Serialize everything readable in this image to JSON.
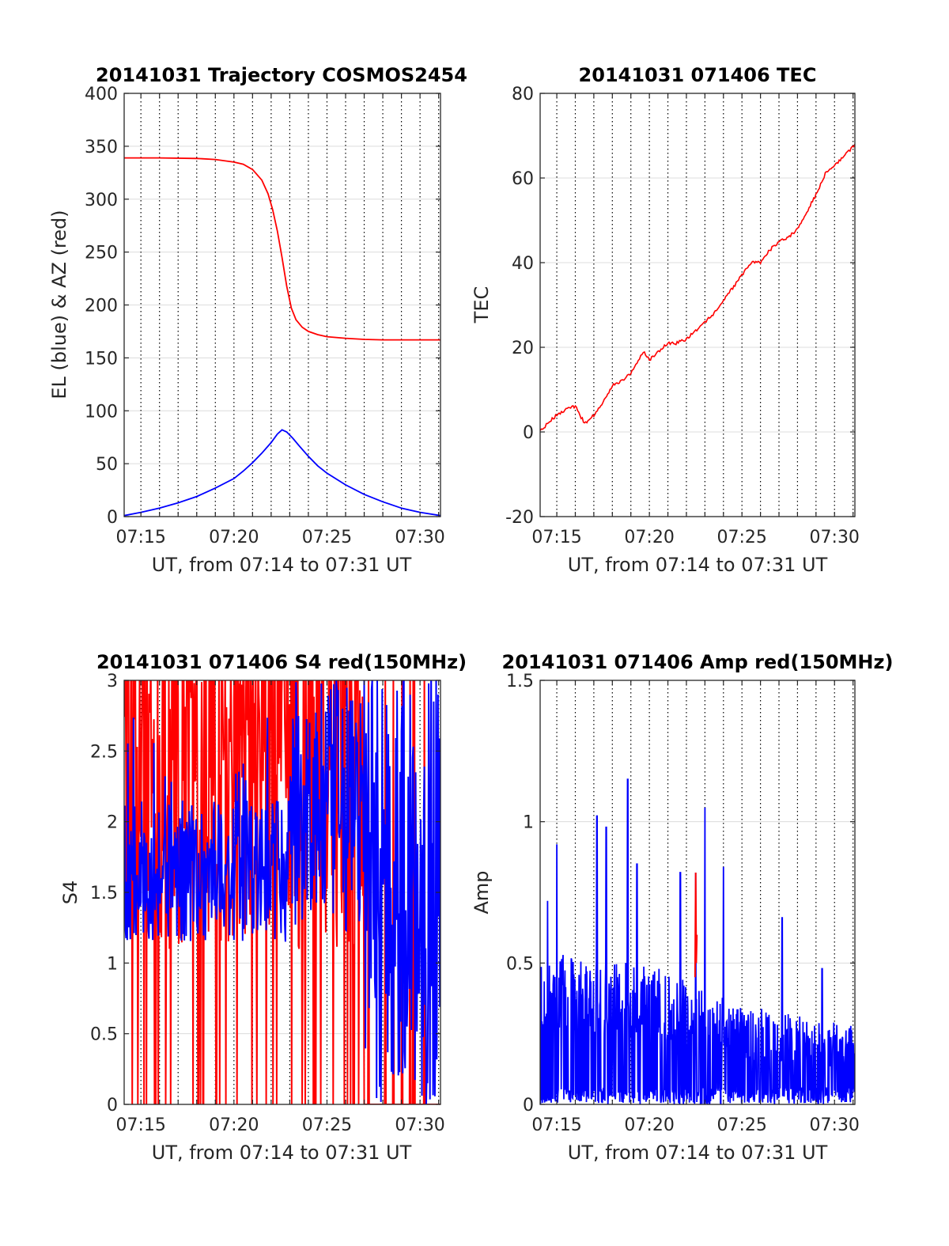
{
  "colors": {
    "az": "#ff0000",
    "el": "#0000ff",
    "tec": "#ff0000",
    "s4_red": "#ff0000",
    "s4_blue": "#0000ff",
    "amp_red": "#ff0000",
    "amp_blue": "#0000ff",
    "grid": "#dcdcdc",
    "axis": "#262626"
  },
  "chart_data": [
    {
      "id": "trajectory",
      "type": "line",
      "title": "20141031 Trajectory COSMOS2454",
      "xlabel": "UT, from 07:14 to 07:31 UT",
      "ylabel": "EL (blue) & AZ (red)",
      "xlim": [
        "07:14:06",
        "07:31:06"
      ],
      "ylim": [
        0,
        400
      ],
      "yticks": [
        0,
        50,
        100,
        150,
        200,
        250,
        300,
        350,
        400
      ],
      "xticks": [
        "07:15",
        "07:20",
        "07:25",
        "07:30"
      ],
      "grid": true,
      "series": [
        {
          "color": "red",
          "x": [
            "07:14:06",
            "07:16:00",
            "07:18:00",
            "07:19:00",
            "07:20:00",
            "07:20:30",
            "07:21:00",
            "07:21:30",
            "07:21:50",
            "07:22:05",
            "07:22:20",
            "07:22:35",
            "07:22:50",
            "07:23:05",
            "07:23:20",
            "07:23:40",
            "07:24:00",
            "07:24:30",
            "07:25:00",
            "07:26:00",
            "07:27:00",
            "07:28:00",
            "07:29:00",
            "07:30:00",
            "07:31:06"
          ],
          "y": [
            339,
            339,
            338.5,
            337.5,
            335,
            333,
            328,
            318,
            305,
            290,
            270,
            245,
            218,
            197,
            186,
            179,
            175,
            172,
            170,
            168.5,
            167.5,
            167,
            167,
            167,
            167
          ]
        },
        {
          "color": "blue",
          "x": [
            "07:14:06",
            "07:15:00",
            "07:16:00",
            "07:17:00",
            "07:18:00",
            "07:19:00",
            "07:20:00",
            "07:20:30",
            "07:21:00",
            "07:21:30",
            "07:22:00",
            "07:22:20",
            "07:22:35",
            "07:22:50",
            "07:23:10",
            "07:23:30",
            "07:24:00",
            "07:24:30",
            "07:25:00",
            "07:26:00",
            "07:27:00",
            "07:28:00",
            "07:29:00",
            "07:30:00",
            "07:31:06"
          ],
          "y": [
            1,
            4,
            8,
            13,
            19,
            27,
            36,
            43,
            51,
            60,
            70,
            78,
            82,
            80,
            74,
            67,
            57,
            48,
            41,
            30,
            21,
            14,
            8,
            4,
            1
          ]
        }
      ]
    },
    {
      "id": "tec",
      "type": "line",
      "title": "20141031 071406 TEC",
      "xlabel": "UT, from 07:14 to 07:31 UT",
      "ylabel": "TEC",
      "xlim": [
        "07:14:06",
        "07:31:06"
      ],
      "ylim": [
        -20,
        80
      ],
      "yticks": [
        -20,
        0,
        20,
        40,
        60,
        80
      ],
      "xticks": [
        "07:15",
        "07:20",
        "07:25",
        "07:30"
      ],
      "grid": true,
      "series": [
        {
          "color": "red",
          "x": [
            "07:14:06",
            "07:14:30",
            "07:15:00",
            "07:15:30",
            "07:16:00",
            "07:16:30",
            "07:17:00",
            "07:17:30",
            "07:18:00",
            "07:18:30",
            "07:19:00",
            "07:19:40",
            "07:20:00",
            "07:20:30",
            "07:21:00",
            "07:21:30",
            "07:22:00",
            "07:22:30",
            "07:23:00",
            "07:23:30",
            "07:24:00",
            "07:24:30",
            "07:25:00",
            "07:25:30",
            "07:26:00",
            "07:26:30",
            "07:27:00",
            "07:27:30",
            "07:28:00",
            "07:28:30",
            "07:29:00",
            "07:29:30",
            "07:30:00",
            "07:30:30",
            "07:31:06"
          ],
          "y": [
            0,
            2,
            4,
            5.5,
            6,
            2,
            4,
            7,
            11,
            12,
            14,
            19,
            17,
            19,
            21,
            21,
            22,
            24,
            26,
            28,
            31,
            34,
            37,
            40,
            40,
            43,
            45,
            46,
            48,
            52,
            56,
            61,
            63,
            65,
            68
          ]
        }
      ]
    },
    {
      "id": "s4",
      "type": "line",
      "title": "20141031 071406 S4 red(150MHz)",
      "xlabel": "UT, from 07:14 to 07:31 UT",
      "ylabel": "S4",
      "xlim": [
        "07:14:06",
        "07:31:06"
      ],
      "ylim": [
        0,
        3
      ],
      "yticks": [
        0,
        0.5,
        1,
        1.5,
        2,
        2.5,
        3
      ],
      "xticks": [
        "07:15",
        "07:20",
        "07:25",
        "07:30"
      ],
      "grid": true,
      "series": [
        {
          "color": "red",
          "note_values": "noisy, mostly 1.2-3 with drops to 0 before 07:27"
        },
        {
          "color": "blue",
          "note_values": "noisy around 1.2-2.2 before 07:23, spans 0-3 after 07:27"
        }
      ]
    },
    {
      "id": "amp",
      "type": "line",
      "title": "20141031 071406 Amp red(150MHz)",
      "xlabel": "UT, from 07:14 to 07:31 UT",
      "ylabel": "Amp",
      "xlim": [
        "07:14:06",
        "07:31:06"
      ],
      "ylim": [
        0,
        1.5
      ],
      "yticks": [
        0,
        0.5,
        1,
        1.5
      ],
      "xticks": [
        "07:15",
        "07:20",
        "07:25",
        "07:30"
      ],
      "grid": true,
      "peaks": [
        {
          "time": "07:14:30",
          "amp": 0.72
        },
        {
          "time": "07:15:00",
          "amp": 0.92
        },
        {
          "time": "07:17:10",
          "amp": 1.02
        },
        {
          "time": "07:17:40",
          "amp": 0.98
        },
        {
          "time": "07:18:50",
          "amp": 1.15
        },
        {
          "time": "07:19:20",
          "amp": 0.85
        },
        {
          "time": "07:21:40",
          "amp": 0.82
        },
        {
          "time": "07:22:30",
          "amp": 0.82
        },
        {
          "time": "07:23:00",
          "amp": 1.05
        },
        {
          "time": "07:24:00",
          "amp": 0.84
        },
        {
          "time": "07:27:10",
          "amp": 0.66
        },
        {
          "time": "07:29:20",
          "amp": 0.48
        }
      ],
      "baseline_trend": [
        {
          "time": "07:14:06",
          "amp": 0.5
        },
        {
          "time": "07:20:00",
          "amp": 0.45
        },
        {
          "time": "07:25:00",
          "amp": 0.32
        },
        {
          "time": "07:31:06",
          "amp": 0.25
        }
      ]
    }
  ]
}
